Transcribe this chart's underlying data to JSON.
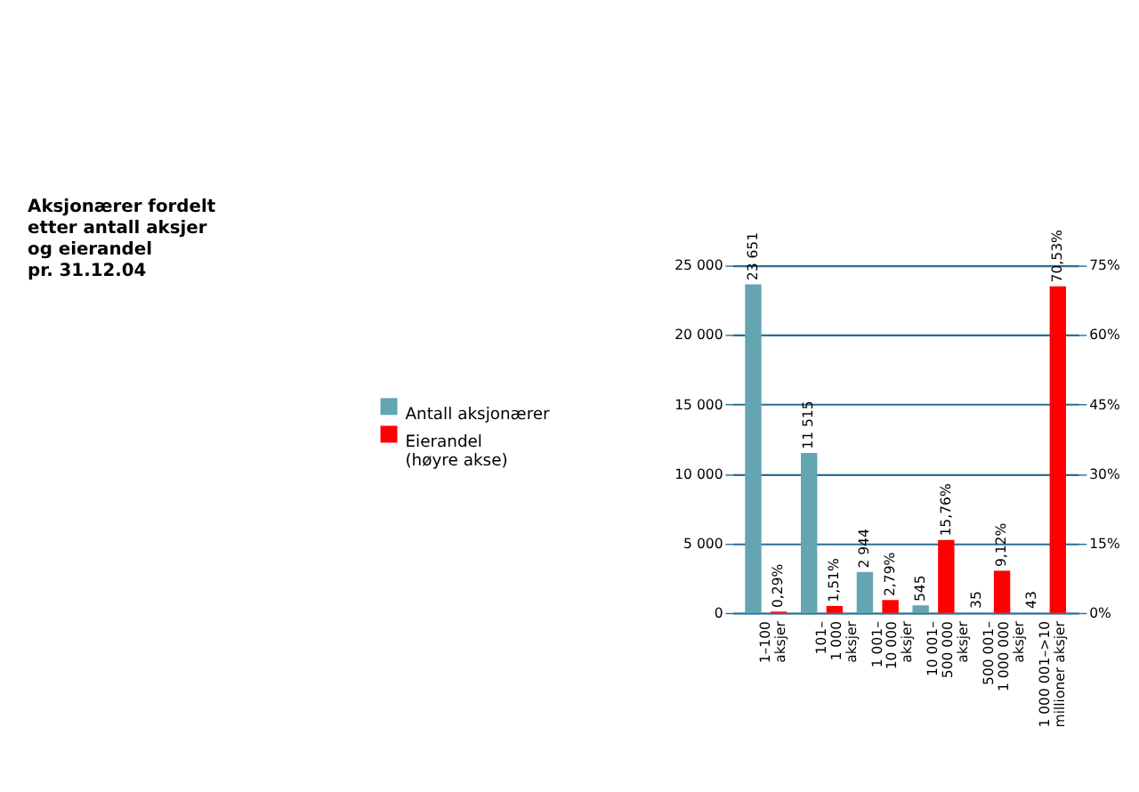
{
  "chart_data": {
    "type": "bar",
    "title": "Aksjonærer fordelt\netter antall aksjer\nog eierandel\npr. 31.12.04",
    "categories": [
      "1–100\naksjer",
      "101–\n1 000\naksjer",
      "1 001–\n10 000\naksjer",
      "10 001–\n500 000\naksjer",
      "500 001–\n1 000 000\naksjer",
      "1 000 001–>10\nmillioner aksjer"
    ],
    "series": [
      {
        "name": "Antall aksjonærer",
        "color": "#63a5b0",
        "values": [
          23651,
          11515,
          2944,
          545,
          35,
          43
        ],
        "value_labels": [
          "23 651",
          "11 515",
          "2 944",
          "545",
          "35",
          "43"
        ]
      },
      {
        "name": "Eierandel\n(høyre akse)",
        "color": "#ff0000",
        "axis": "y2",
        "values": [
          0.29,
          1.51,
          2.79,
          15.76,
          9.12,
          70.53
        ],
        "value_labels": [
          "0,29%",
          "1,51%",
          "2,79%",
          "15,76%",
          "9,12%",
          "70,53%"
        ]
      }
    ],
    "ylim": [
      0,
      25000
    ],
    "yticks": [
      0,
      {
        "value": 5000,
        "label": "5 000"
      },
      {
        "value": 10000,
        "label": "10 000"
      },
      {
        "value": 15000,
        "label": "15 000"
      },
      {
        "value": 20000,
        "label": "20 000"
      },
      {
        "value": 25000,
        "label": "25 000"
      }
    ],
    "y2lim": [
      0,
      75
    ],
    "y2ticks": [
      {
        "value": 0,
        "label": "0%"
      },
      {
        "value": 15,
        "label": "15%"
      },
      {
        "value": 30,
        "label": "30%"
      },
      {
        "value": 45,
        "label": "45%"
      },
      {
        "value": 60,
        "label": "60%"
      },
      {
        "value": 75,
        "label": "75%"
      }
    ],
    "grid": "y",
    "legend": "left"
  }
}
